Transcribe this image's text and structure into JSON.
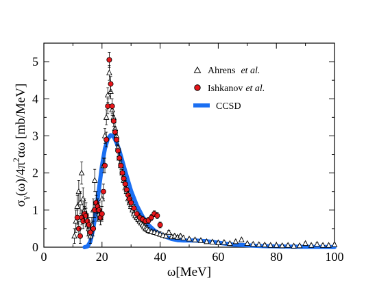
{
  "chart_data": {
    "type": "scatter",
    "title": "",
    "xlabel": "ω[MeV]",
    "ylabel_parts": {
      "sigma": "σ",
      "sub_gamma": "γ",
      "mid": "(ω)/4π",
      "sup_two": "2",
      "tail": "αω [mb/MeV]"
    },
    "xlim": [
      0,
      100
    ],
    "ylim": [
      0,
      5.5
    ],
    "x_ticks": [
      0,
      20,
      40,
      60,
      80,
      100
    ],
    "y_ticks": [
      0,
      1,
      2,
      3,
      4,
      5
    ],
    "grid": false,
    "legend_position": "top-right",
    "legend": [
      {
        "label_main": "Ahrens",
        "label_italic": "et al.",
        "marker": "open-triangle"
      },
      {
        "label_main": "Ishkanov",
        "label_italic": "et al.",
        "marker": "red-circle"
      },
      {
        "label_main": "CCSD",
        "label_italic": "",
        "marker": "line"
      }
    ],
    "series": [
      {
        "name": "Ahrens et al.",
        "marker": "open-triangle",
        "color": "#000000",
        "x": [
          10.5,
          11,
          11.5,
          12,
          12.5,
          13,
          13.5,
          14,
          14.5,
          15,
          15.5,
          16,
          16.5,
          17,
          17.5,
          18,
          18.5,
          19,
          19.5,
          20,
          20.5,
          21,
          21.5,
          22,
          22.5,
          23,
          23.5,
          24,
          24.5,
          25,
          25.5,
          26,
          26.5,
          27,
          27.5,
          28,
          28.5,
          29,
          29.5,
          30,
          30.5,
          31,
          31.5,
          32,
          32.5,
          33,
          33.5,
          34,
          34.5,
          35,
          35.5,
          36,
          37,
          38,
          39,
          40,
          41,
          42,
          43,
          44,
          45,
          46,
          47,
          48,
          50,
          52,
          54,
          56,
          58,
          60,
          62,
          64,
          66,
          68,
          70,
          72,
          74,
          76,
          78,
          80,
          82,
          84,
          86,
          88,
          90,
          92,
          94,
          96,
          98,
          100
        ],
        "y": [
          0.3,
          0.7,
          1.1,
          1.5,
          1.2,
          2.0,
          1.3,
          1.0,
          0.9,
          0.6,
          0.5,
          0.3,
          0.6,
          1.0,
          1.8,
          1.2,
          1.0,
          0.9,
          0.8,
          1.3,
          2.2,
          3.0,
          3.5,
          4.1,
          4.7,
          4.2,
          3.7,
          3.5,
          3.2,
          3.0,
          2.7,
          2.4,
          2.2,
          2.0,
          1.8,
          1.6,
          1.5,
          1.3,
          1.2,
          1.1,
          1.0,
          0.9,
          0.85,
          0.8,
          0.75,
          0.7,
          0.65,
          0.6,
          0.55,
          0.5,
          0.5,
          0.45,
          0.42,
          0.4,
          0.38,
          0.35,
          0.32,
          0.3,
          0.4,
          0.28,
          0.3,
          0.27,
          0.3,
          0.25,
          0.22,
          0.2,
          0.18,
          0.15,
          0.14,
          0.12,
          0.13,
          0.1,
          0.15,
          0.2,
          0.1,
          0.08,
          0.07,
          0.06,
          0.05,
          0.05,
          0.04,
          0.05,
          0.03,
          0.04,
          0.1,
          0.05,
          0.08,
          0.05,
          0.05,
          0.07
        ],
        "err": [
          0.2,
          0.3,
          0.3,
          0.3,
          0.3,
          0.3,
          0.3,
          0.3,
          0.3,
          0.3,
          0.2,
          0.2,
          0.2,
          0.3,
          0.3,
          0.3,
          0.3,
          0.2,
          0.2,
          0.2,
          0.2,
          0.2,
          0.2,
          0.2,
          0.2,
          0.2,
          0.15,
          0.15,
          0.15,
          0.15,
          0.15,
          0.15,
          0.1,
          0.1,
          0.1,
          0.1,
          0.1,
          0.1,
          0.1,
          0.1,
          0.1,
          0.1,
          0.08,
          0.08,
          0.08,
          0.08,
          0.08,
          0.08,
          0.08,
          0.08,
          0.08,
          0.08,
          0.06,
          0.06,
          0.06,
          0.06,
          0.05,
          0.05,
          0.05,
          0.05,
          0.05,
          0.05,
          0.05,
          0.05,
          0.05,
          0.04,
          0.04,
          0.04,
          0.04,
          0.04,
          0.04,
          0.04,
          0.04,
          0.04,
          0.04,
          0.04,
          0.04,
          0.04,
          0.04,
          0.04,
          0.04,
          0.04,
          0.04,
          0.04,
          0.04,
          0.04,
          0.04,
          0.04,
          0.04,
          0.04
        ]
      },
      {
        "name": "Ishkanov et al.",
        "marker": "red-circle",
        "color": "#e8161b",
        "x": [
          11.5,
          12,
          12.5,
          13,
          13.5,
          14,
          14.5,
          15,
          15.5,
          16,
          17,
          17.5,
          18,
          18.5,
          19,
          19.5,
          20,
          20.5,
          21,
          21.5,
          22,
          22.5,
          23,
          23.5,
          24,
          24.5,
          25,
          25.5,
          26,
          26.5,
          27,
          27.5,
          28,
          28.5,
          29,
          29.5,
          30,
          31,
          32,
          33,
          34,
          35,
          36,
          37,
          38,
          39,
          40
        ],
        "y": [
          0.8,
          0.5,
          0.3,
          0.8,
          0.7,
          0.9,
          0.85,
          0.7,
          0.6,
          0.4,
          0.5,
          1.0,
          1.2,
          1.1,
          1.0,
          0.8,
          0.9,
          1.5,
          2.2,
          2.9,
          3.8,
          5.05,
          4.4,
          3.8,
          3.4,
          3.1,
          2.9,
          2.6,
          2.4,
          2.2,
          2.0,
          1.85,
          1.7,
          1.55,
          1.4,
          1.3,
          1.2,
          1.05,
          0.9,
          0.8,
          0.75,
          0.7,
          0.72,
          0.8,
          0.9,
          0.85,
          0.6
        ],
        "err": [
          0.2,
          0.2,
          0.2,
          0.2,
          0.2,
          0.2,
          0.2,
          0.2,
          0.2,
          0.2,
          0.2,
          0.2,
          0.2,
          0.2,
          0.2,
          0.2,
          0.2,
          0.2,
          0.2,
          0.2,
          0.2,
          0.2,
          0.2,
          0.2,
          0.15,
          0.15,
          0.15,
          0.15,
          0.15,
          0.15,
          0.1,
          0.1,
          0.1,
          0.1,
          0.1,
          0.1,
          0.1,
          0.1,
          0.1,
          0.1,
          0.08,
          0.08,
          0.08,
          0.08,
          0.08,
          0.08,
          0.08
        ]
      },
      {
        "name": "CCSD",
        "marker": "line",
        "color": "#1b6ff2",
        "x": [
          14,
          15,
          16,
          17,
          18,
          19,
          20,
          21,
          22,
          23,
          24,
          25,
          26,
          27,
          28,
          29,
          30,
          32,
          34,
          36,
          38,
          40,
          42,
          44,
          46,
          48,
          50,
          52,
          54,
          56,
          58,
          60,
          62,
          65,
          70,
          75,
          80,
          85,
          90,
          95,
          100
        ],
        "y": [
          0.0,
          0.02,
          0.15,
          0.5,
          1.0,
          1.6,
          2.2,
          2.65,
          2.92,
          3.02,
          2.98,
          2.82,
          2.6,
          2.32,
          2.05,
          1.78,
          1.52,
          1.12,
          0.82,
          0.6,
          0.45,
          0.35,
          0.28,
          0.22,
          0.19,
          0.18,
          0.18,
          0.18,
          0.17,
          0.16,
          0.14,
          0.12,
          0.1,
          0.07,
          0.05,
          0.03,
          0.02,
          0.015,
          0.01,
          0.008,
          0.006
        ]
      }
    ]
  }
}
